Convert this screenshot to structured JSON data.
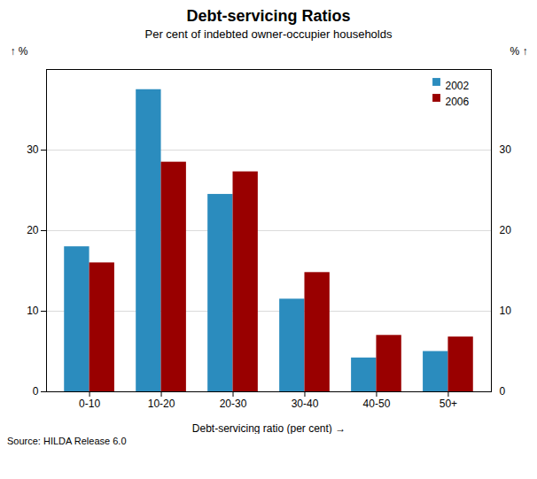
{
  "chart_data": {
    "type": "bar",
    "title": "Debt-servicing Ratios",
    "subtitle": "Per cent of indebted owner-occupier households",
    "xlabel": "Debt-servicing ratio (per cent)",
    "ylabel": "%",
    "y2label": "%",
    "source": "Source: HILDA Release 6.0",
    "categories": [
      "0-10",
      "10-20",
      "20-30",
      "30-40",
      "40-50",
      "50+"
    ],
    "series": [
      {
        "name": "2002",
        "color": "#2b8cbe",
        "values": [
          18.0,
          37.5,
          24.5,
          11.5,
          4.2,
          5.0
        ]
      },
      {
        "name": "2006",
        "color": "#990000",
        "values": [
          16.0,
          28.5,
          27.3,
          14.8,
          7.0,
          6.8
        ]
      }
    ],
    "ylim": [
      0,
      40
    ],
    "yticks": [
      0,
      10,
      20,
      30
    ],
    "y2lim": [
      0,
      40
    ],
    "y2ticks": [
      0,
      10,
      20,
      30
    ],
    "grid": true,
    "legend": "upper right"
  }
}
